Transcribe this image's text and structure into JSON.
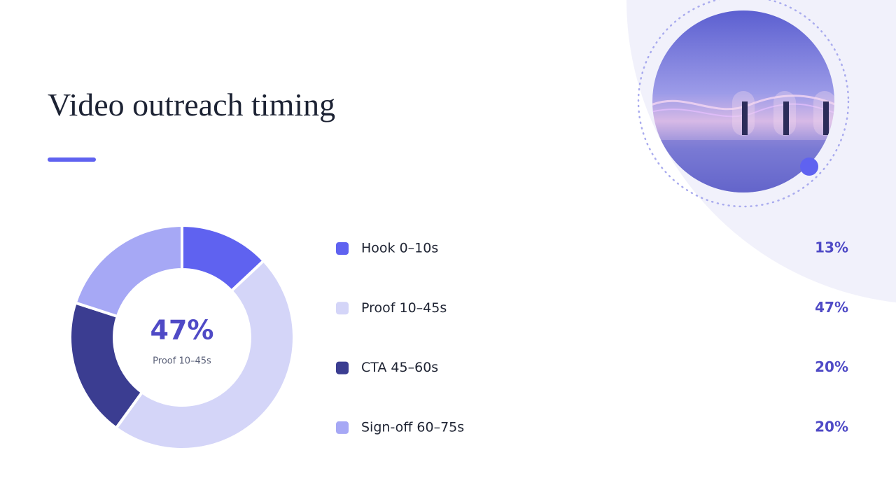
{
  "chart_data": {
    "type": "donut",
    "title": "Video outreach timing",
    "categories": [
      "Hook 0–10s",
      "Proof 10–45s",
      "CTA 45–60s",
      "Sign-off 60–75s"
    ],
    "values": [
      13,
      47,
      20,
      20
    ],
    "value_labels": [
      "13%",
      "47%",
      "20%",
      "20%"
    ],
    "colors": [
      "#5f62f0",
      "#d4d5f8",
      "#3b3d91",
      "#a6a8f5"
    ]
  }
}
